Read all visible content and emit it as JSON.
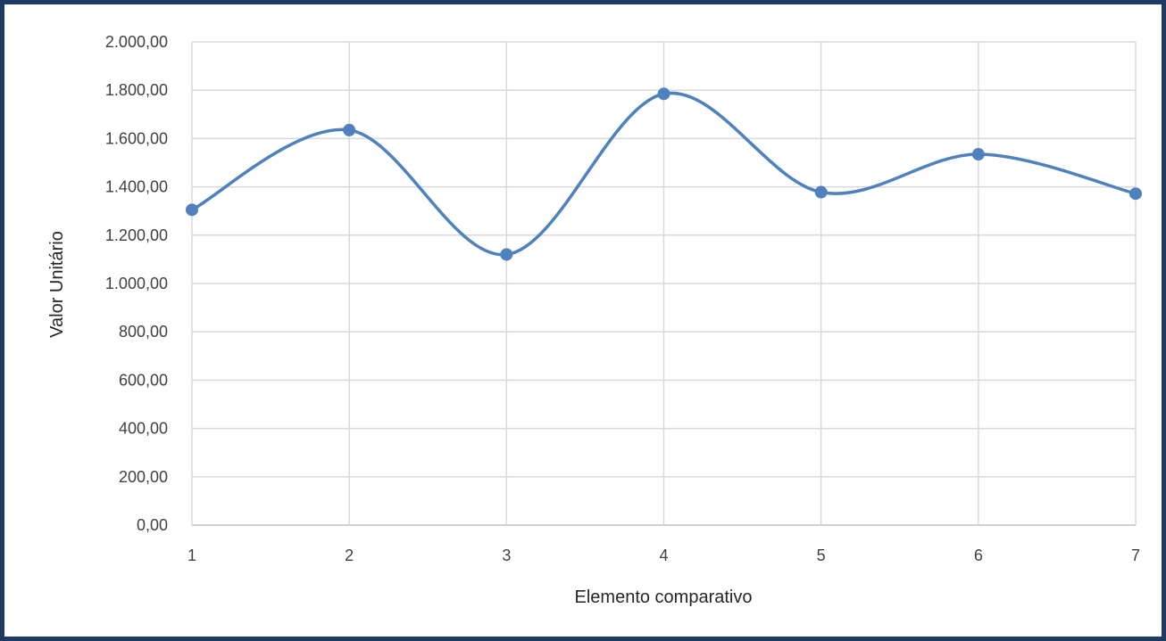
{
  "chart_data": {
    "type": "line",
    "smooth": true,
    "categories": [
      "1",
      "2",
      "3",
      "4",
      "5",
      "6",
      "7"
    ],
    "series": [
      {
        "values": [
          1305,
          1635,
          1120,
          1785,
          1378,
          1535,
          1372
        ]
      }
    ],
    "xlabel": "Elemento comparativo",
    "ylabel": "Valor Unitário",
    "ylim": [
      0,
      2000
    ],
    "yticks": [
      "0,00",
      "200,00",
      "400,00",
      "600,00",
      "800,00",
      "1.000,00",
      "1.200,00",
      "1.400,00",
      "1.600,00",
      "1.800,00",
      "2.000,00"
    ],
    "grid": true,
    "legend": "none",
    "colors": {
      "line": "#4f81bd",
      "grid": "#d9d9d9",
      "frame": "#1f3a63"
    }
  }
}
